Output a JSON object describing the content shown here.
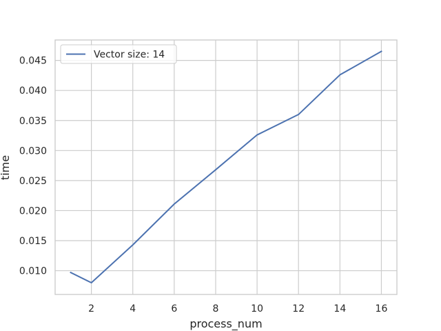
{
  "chart_data": {
    "type": "line",
    "title": "",
    "xlabel": "process_num",
    "ylabel": "time",
    "xlim": [
      0.25,
      16.75
    ],
    "ylim": [
      0.00605,
      0.0484
    ],
    "xticks": [
      2,
      4,
      6,
      8,
      10,
      12,
      14,
      16
    ],
    "xtick_labels": [
      "2",
      "4",
      "6",
      "8",
      "10",
      "12",
      "14",
      "16"
    ],
    "yticks": [
      0.01,
      0.015,
      0.02,
      0.025,
      0.03,
      0.035,
      0.04,
      0.045
    ],
    "ytick_labels": [
      "0.010",
      "0.015",
      "0.020",
      "0.025",
      "0.030",
      "0.035",
      "0.040",
      "0.045"
    ],
    "grid": true,
    "legend_position": "upper-left",
    "series": [
      {
        "name": "Vector size: 14",
        "color": "#4c72b0",
        "x": [
          1,
          2,
          4,
          6,
          8,
          10,
          12,
          14,
          16
        ],
        "y": [
          0.0097,
          0.008,
          0.0143,
          0.0211,
          0.0268,
          0.0326,
          0.036,
          0.0426,
          0.0465
        ]
      }
    ]
  },
  "colors": {
    "grid": "#cccccc",
    "spine": "#cccccc",
    "background": "#ffffff",
    "text": "#262626"
  }
}
